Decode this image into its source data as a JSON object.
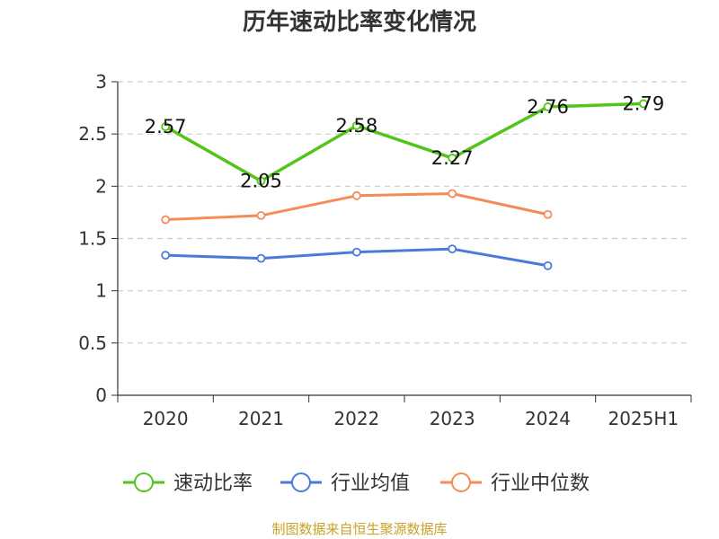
{
  "chart_data": {
    "type": "line",
    "title": "历年速动比率变化情况",
    "categories": [
      "2020",
      "2021",
      "2022",
      "2023",
      "2024",
      "2025H1"
    ],
    "y_ticks": [
      "0",
      "0.5",
      "1",
      "1.5",
      "2",
      "2.5",
      "3"
    ],
    "ylim": [
      0,
      3
    ],
    "grid": true,
    "legend_position": "bottom",
    "series": [
      {
        "name": "速动比率",
        "color": "#52c41a",
        "values": [
          2.57,
          2.05,
          2.58,
          2.27,
          2.76,
          2.79
        ],
        "data_labels": [
          "2.57",
          "2.05",
          "2.58",
          "2.27",
          "2.76",
          "2.79"
        ]
      },
      {
        "name": "行业均值",
        "color": "#4a7bd8",
        "values": [
          1.34,
          1.31,
          1.37,
          1.4,
          1.24,
          null
        ]
      },
      {
        "name": "行业中位数",
        "color": "#f58b57",
        "values": [
          1.68,
          1.72,
          1.91,
          1.93,
          1.73,
          null
        ]
      }
    ]
  },
  "source": {
    "text": "制图数据来自恒生聚源数据库",
    "color": "#c9a227"
  }
}
